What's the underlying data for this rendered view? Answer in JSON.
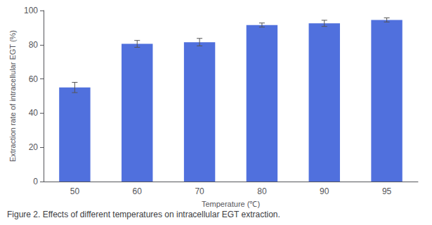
{
  "chart_data": {
    "type": "bar",
    "caption": "Figure 2. Effects of different temperatures on intracellular EGT extraction.",
    "xlabel": "Temperature (℃)",
    "ylabel": "Extraction rate of intracellular EGT (%)",
    "categories": [
      "50",
      "60",
      "70",
      "80",
      "90",
      "95"
    ],
    "values": [
      55.0,
      80.5,
      81.5,
      91.5,
      92.5,
      94.5
    ],
    "errors": [
      3.0,
      2.0,
      2.2,
      1.2,
      1.8,
      1.2
    ],
    "ylim": [
      0,
      100
    ],
    "yticks": [
      0,
      20,
      40,
      60,
      80,
      100
    ],
    "grid": false
  }
}
